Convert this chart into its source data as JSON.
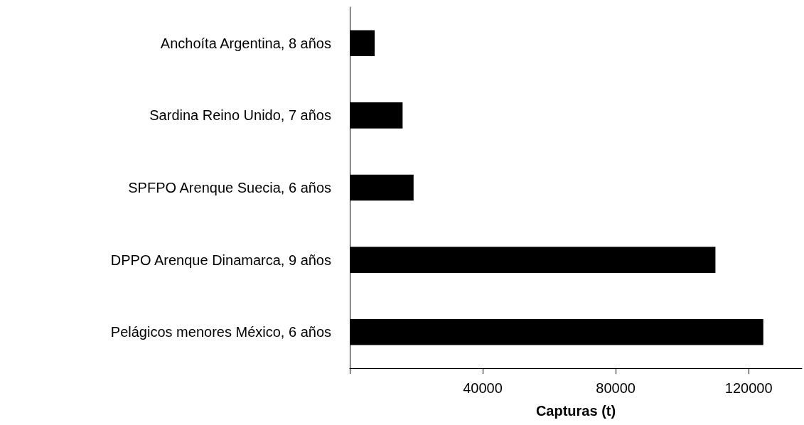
{
  "chart_data": {
    "type": "bar",
    "orientation": "horizontal",
    "xlabel": "Capturas (t)",
    "categories": [
      "Anchoíta Argentina, 8 años",
      "Sardina Reino Unido, 7 años",
      "SPFPO Arenque Suecia, 6 años",
      "DPPO Arenque Dinamarca, 9 años",
      "Pelágicos menores México, 6 años"
    ],
    "values": [
      7500,
      15900,
      19200,
      110000,
      124400
    ],
    "color": "#000000",
    "xlim": [
      0,
      136000
    ],
    "xticks": [
      {
        "value": 0,
        "label": null
      },
      40000,
      80000,
      120000
    ],
    "grid": false
  }
}
